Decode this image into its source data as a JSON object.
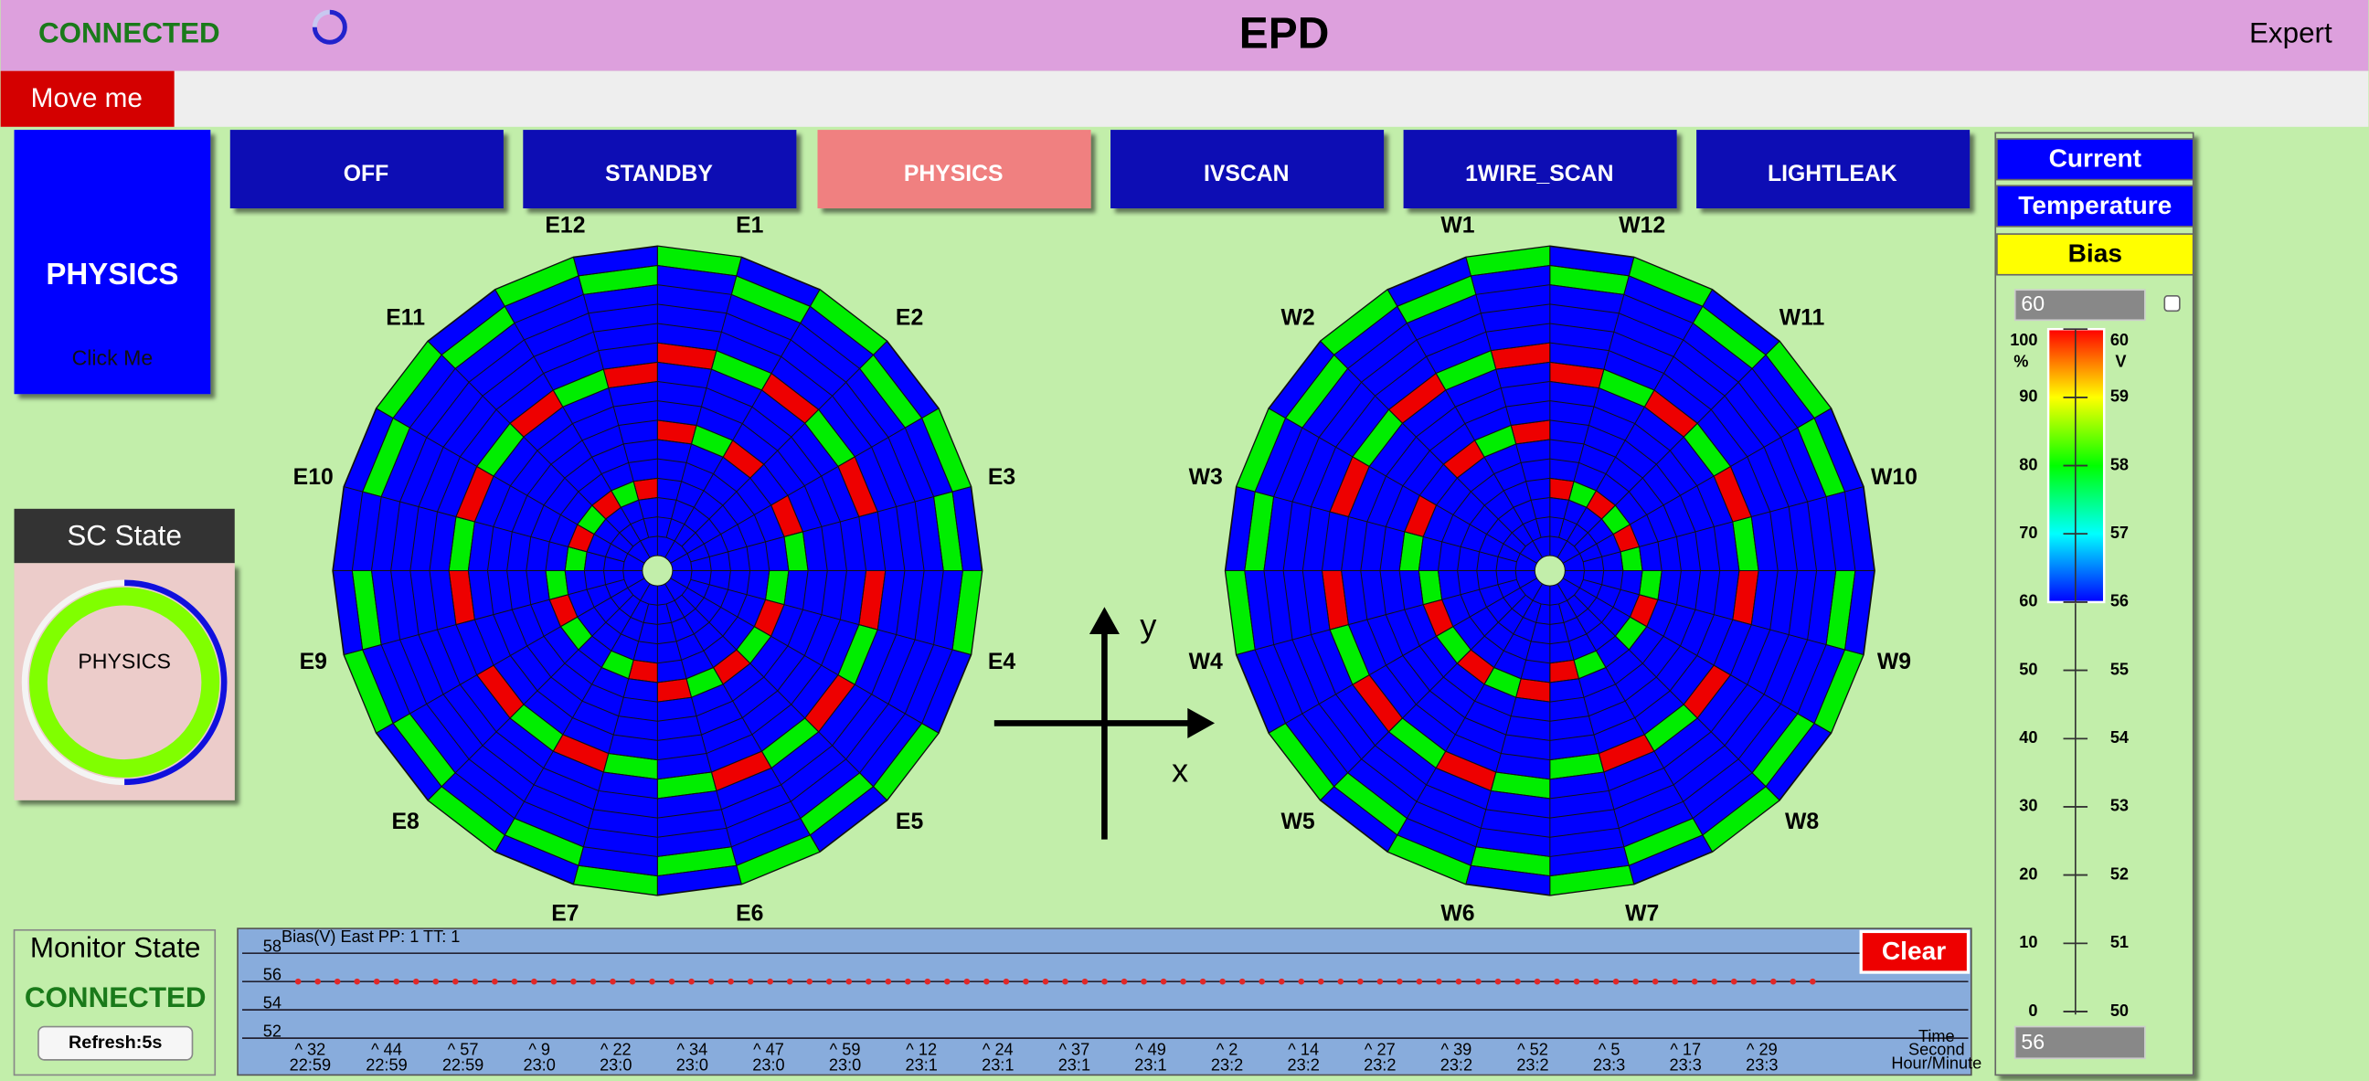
{
  "header": {
    "status": "CONNECTED",
    "title": "EPD",
    "mode": "Expert"
  },
  "move_button": "Move me",
  "main_button": {
    "label": "PHYSICS",
    "hint": "Click Me"
  },
  "mode_buttons": [
    "OFF",
    "STANDBY",
    "PHYSICS",
    "IVSCAN",
    "1WIRE_SCAN",
    "LIGHTLEAK"
  ],
  "active_mode_index": 2,
  "sc_state": {
    "title": "SC State",
    "state": "PHYSICS"
  },
  "monitor": {
    "title": "Monitor State",
    "status": "CONNECTED",
    "refresh": "Refresh:5s"
  },
  "wheels": {
    "east_labels": [
      "E1",
      "E2",
      "E3",
      "E4",
      "E5",
      "E6",
      "E7",
      "E8",
      "E9",
      "E10",
      "E11",
      "E12"
    ],
    "west_labels": [
      "W1",
      "W2",
      "W3",
      "W4",
      "W5",
      "W6",
      "W7",
      "W8",
      "W9",
      "W10",
      "W11",
      "W12"
    ],
    "axis_x": "x",
    "axis_y": "y"
  },
  "color_panel": {
    "buttons": [
      "Current",
      "Temperature",
      "Bias"
    ],
    "max_input": "60",
    "min_input": "56"
  },
  "chart_data": [
    {
      "type": "strip",
      "title": "Bias(V) East PP: 1 TT: 1",
      "clear_button": "Clear",
      "ylim": [
        51,
        59
      ],
      "yticks": [
        52,
        54,
        56,
        58
      ],
      "xtick_labels": [
        [
          "^ 32",
          "22:59"
        ],
        [
          "^ 44",
          "22:59"
        ],
        [
          "^ 57",
          "22:59"
        ],
        [
          "^ 9",
          "23:0"
        ],
        [
          "^ 22",
          "23:0"
        ],
        [
          "^ 34",
          "23:0"
        ],
        [
          "^ 47",
          "23:0"
        ],
        [
          "^ 59",
          "23:0"
        ],
        [
          "^ 12",
          "23:1"
        ],
        [
          "^ 24",
          "23:1"
        ],
        [
          "^ 37",
          "23:1"
        ],
        [
          "^ 49",
          "23:1"
        ],
        [
          "^ 2",
          "23:2"
        ],
        [
          "^ 14",
          "23:2"
        ],
        [
          "^ 27",
          "23:2"
        ],
        [
          "^ 39",
          "23:2"
        ],
        [
          "^ 52",
          "23:2"
        ],
        [
          "^ 5",
          "23:3"
        ],
        [
          "^ 17",
          "23:3"
        ],
        [
          "^ 29",
          "23:3"
        ]
      ],
      "xlabel": [
        "Time",
        "Second",
        "Hour/Minute"
      ],
      "series": [
        {
          "color": "#e02828",
          "values": [
            56,
            56,
            56,
            56,
            56,
            56,
            56,
            56,
            56,
            56,
            56,
            56,
            56,
            56,
            56,
            56,
            56,
            56,
            56,
            56,
            56,
            56,
            56,
            56,
            56,
            56,
            56,
            56,
            56,
            56,
            56,
            56,
            56,
            56,
            56,
            56,
            56,
            56,
            56,
            56,
            56,
            56,
            56,
            56,
            56,
            56,
            56,
            56,
            56,
            56,
            56,
            56,
            56,
            56,
            56,
            56,
            56,
            56,
            56,
            56,
            56,
            56,
            56,
            56,
            56,
            56,
            56,
            56,
            56,
            56,
            56,
            56,
            56,
            56,
            56,
            56,
            56,
            56
          ]
        }
      ]
    },
    {
      "type": "colorbar",
      "ylim": [
        0,
        100
      ],
      "yticks": [
        0,
        10,
        20,
        30,
        40,
        50,
        60,
        70,
        80,
        90,
        100
      ],
      "y_unit": "%",
      "y2lim": [
        50,
        60
      ],
      "y2ticks": [
        50,
        51,
        52,
        53,
        54,
        55,
        56,
        57,
        58,
        59,
        60
      ],
      "y2_unit": "V"
    }
  ]
}
